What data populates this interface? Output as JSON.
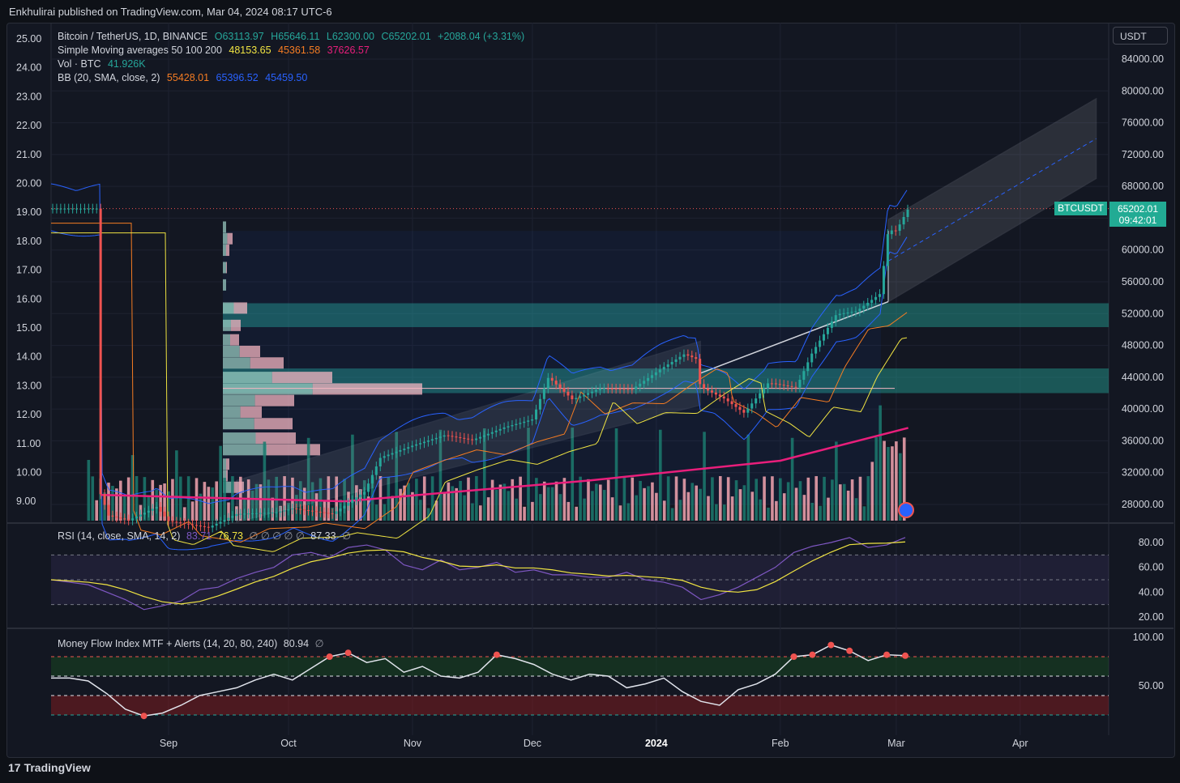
{
  "header": {
    "published": "Enkhulirai published on TradingView.com, Mar 04, 2024 08:17 UTC-6"
  },
  "currency_button": "USDT",
  "legend": {
    "symbol": "Bitcoin / TetherUS, 1D, BINANCE",
    "open": "O63113.97",
    "high": "H65646.11",
    "low": "L62300.00",
    "close": "C65202.01",
    "change": "+2088.04 (+3.31%)",
    "sma_label": "Simple Moving averages 50 100 200",
    "sma50": "48153.65",
    "sma100": "45361.58",
    "sma200": "37626.57",
    "vol_label": "Vol · BTC",
    "vol_value": "41.926K",
    "bb_label": "BB (20, SMA, close, 2)",
    "bb_basis": "55428.01",
    "bb_upper": "65396.52",
    "bb_lower": "45459.50"
  },
  "rsi_legend": {
    "label": "RSI (14, close, SMA, 14, 2)",
    "rsi": "83.71",
    "rsi_ma": "76.73",
    "na": "∅ ∅ ∅ ∅ ∅",
    "extra": "87.33",
    "na2": "∅"
  },
  "mfi_legend": {
    "label": "Money Flow Index MTF + Alerts (14, 20, 80, 240)",
    "value": "80.94",
    "na": "∅"
  },
  "price_tag": {
    "symbol": "BTCUSDT",
    "price": "65202.01",
    "countdown": "09:42:01"
  },
  "footer": {
    "brand": "TradingView"
  },
  "colors": {
    "bg": "#131722",
    "up": "#26a69a",
    "down": "#ef5350",
    "sma50": "#f0e442",
    "sma100": "#f57c22",
    "sma200": "#e91e7b",
    "bb": "#2962ff",
    "rsi": "#7e57c2",
    "rsi_ma": "#f0e442",
    "mfi": "#e0e3eb",
    "zone": "#26a69a"
  },
  "chart_data": {
    "type": "candlestick",
    "title": "Bitcoin / TetherUS, 1D, BINANCE",
    "right_axis": {
      "ticks": [
        "84000.00",
        "80000.00",
        "76000.00",
        "72000.00",
        "68000.00",
        "64000.00",
        "60000.00",
        "56000.00",
        "52000.00",
        "48000.00",
        "44000.00",
        "40000.00",
        "36000.00",
        "32000.00",
        "28000.00"
      ],
      "values": [
        84000,
        80000,
        76000,
        72000,
        68000,
        64000,
        60000,
        56000,
        52000,
        48000,
        44000,
        40000,
        36000,
        32000,
        28000
      ]
    },
    "left_axis": {
      "ticks": [
        "25.00",
        "24.00",
        "23.00",
        "22.00",
        "21.00",
        "20.00",
        "19.00",
        "18.00",
        "17.00",
        "16.00",
        "15.00",
        "14.00",
        "13.00",
        "12.00",
        "11.00",
        "10.00",
        "9.00"
      ],
      "values": [
        25,
        24,
        23,
        22,
        21,
        20,
        19,
        18,
        17,
        16,
        15,
        14,
        13,
        12,
        11,
        10,
        9
      ]
    },
    "x_labels": [
      "Sep",
      "Oct",
      "Nov",
      "Dec",
      "2024",
      "Feb",
      "Mar",
      "Apr"
    ],
    "close_series": [
      {
        "date": "2023-08-15",
        "close": 29300
      },
      {
        "date": "2023-08-17",
        "close": 26600
      },
      {
        "date": "2023-08-22",
        "close": 26000
      },
      {
        "date": "2023-08-29",
        "close": 27700
      },
      {
        "date": "2023-09-01",
        "close": 25900
      },
      {
        "date": "2023-09-11",
        "close": 25100
      },
      {
        "date": "2023-09-18",
        "close": 26800
      },
      {
        "date": "2023-09-28",
        "close": 27000
      },
      {
        "date": "2023-10-02",
        "close": 27500
      },
      {
        "date": "2023-10-12",
        "close": 26800
      },
      {
        "date": "2023-10-20",
        "close": 29600
      },
      {
        "date": "2023-10-24",
        "close": 33900
      },
      {
        "date": "2023-11-01",
        "close": 35400
      },
      {
        "date": "2023-11-09",
        "close": 36700
      },
      {
        "date": "2023-11-16",
        "close": 36100
      },
      {
        "date": "2023-11-24",
        "close": 37700
      },
      {
        "date": "2023-12-01",
        "close": 38700
      },
      {
        "date": "2023-12-05",
        "close": 44000
      },
      {
        "date": "2023-12-11",
        "close": 41200
      },
      {
        "date": "2023-12-18",
        "close": 42600
      },
      {
        "date": "2023-12-26",
        "close": 42500
      },
      {
        "date": "2024-01-02",
        "close": 45000
      },
      {
        "date": "2024-01-08",
        "close": 46900
      },
      {
        "date": "2024-01-11",
        "close": 46300
      },
      {
        "date": "2024-01-12",
        "close": 42800
      },
      {
        "date": "2024-01-18",
        "close": 41300
      },
      {
        "date": "2024-01-23",
        "close": 39500
      },
      {
        "date": "2024-01-29",
        "close": 43300
      },
      {
        "date": "2024-02-05",
        "close": 42700
      },
      {
        "date": "2024-02-09",
        "close": 47100
      },
      {
        "date": "2024-02-15",
        "close": 51900
      },
      {
        "date": "2024-02-20",
        "close": 52300
      },
      {
        "date": "2024-02-26",
        "close": 54500
      },
      {
        "date": "2024-02-28",
        "close": 62500
      },
      {
        "date": "2024-03-01",
        "close": 62400
      },
      {
        "date": "2024-03-04",
        "close": 65202
      }
    ],
    "sma200_points": [
      [
        "2023-08-15",
        29200
      ],
      [
        "2023-10-15",
        28400
      ],
      [
        "2023-12-15",
        31000
      ],
      [
        "2024-02-01",
        33500
      ],
      [
        "2024-03-04",
        37626
      ]
    ],
    "zones": [
      {
        "from": 50300,
        "to": 53300
      },
      {
        "from": 42000,
        "to": 45100
      }
    ],
    "channel": {
      "upper_start": {
        "date": "2023-09-18",
        "price": 31000
      },
      "upper_end": {
        "date": "2024-04-20",
        "price": 79000
      },
      "lower_start": {
        "date": "2023-09-18",
        "price": 25800
      },
      "lower_end": {
        "date": "2024-04-20",
        "price": 69000
      }
    },
    "rsi_axis": {
      "ticks": [
        "80.00",
        "60.00",
        "40.00",
        "20.00"
      ],
      "values": [
        80,
        60,
        40,
        20
      ]
    },
    "rsi_series": [
      50,
      48,
      46,
      40,
      34,
      26,
      29,
      33,
      42,
      44,
      51,
      56,
      60,
      70,
      72,
      68,
      76,
      78,
      74,
      62,
      58,
      66,
      58,
      60,
      64,
      56,
      58,
      54,
      54,
      52,
      52,
      56,
      50,
      48,
      44,
      34,
      38,
      44,
      52,
      60,
      72,
      77,
      80,
      84,
      76,
      78,
      84
    ],
    "mfi_axis": {
      "ticks": [
        "100.00",
        "50.00"
      ],
      "values": [
        100,
        50
      ]
    },
    "mfi_series": [
      58,
      58,
      55,
      42,
      26,
      19,
      22,
      30,
      40,
      44,
      48,
      56,
      62,
      56,
      68,
      80,
      84,
      74,
      78,
      64,
      70,
      60,
      58,
      64,
      82,
      78,
      72,
      62,
      56,
      62,
      60,
      48,
      52,
      58,
      44,
      34,
      30,
      46,
      52,
      62,
      80,
      82,
      92,
      86,
      76,
      82,
      81
    ]
  }
}
